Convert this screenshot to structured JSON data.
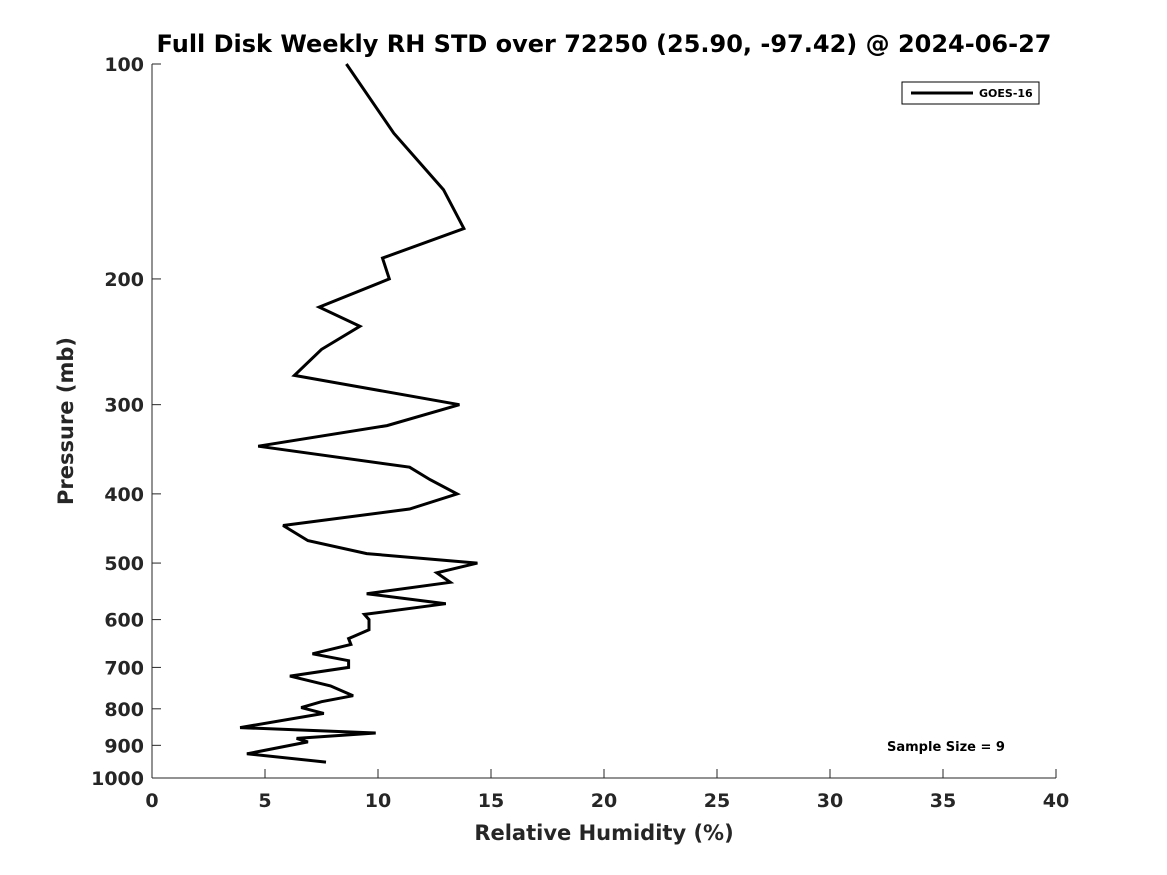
{
  "chart_data": {
    "type": "line",
    "title": "Full Disk Weekly RH STD over 72250 (25.90, -97.42) @ 2024-06-27",
    "xlabel": "Relative Humidity (%)",
    "ylabel": "Pressure (mb)",
    "xlim": [
      0,
      40
    ],
    "ylim": [
      100,
      1000
    ],
    "y_scale": "log",
    "y_reversed": true,
    "x_ticks": [
      "0",
      "5",
      "10",
      "15",
      "20",
      "25",
      "30",
      "35",
      "40"
    ],
    "y_ticks": [
      "100",
      "200",
      "300",
      "400",
      "500",
      "600",
      "700",
      "800",
      "900",
      "1000"
    ],
    "grid": false,
    "legend_position": "top-right",
    "annotation": "Sample Size = 9",
    "series": [
      {
        "name": "GOES-16",
        "color": "#000000",
        "points": [
          [
            8.6,
            100
          ],
          [
            10.7,
            125
          ],
          [
            12.9,
            150
          ],
          [
            13.8,
            170
          ],
          [
            10.2,
            187
          ],
          [
            10.5,
            200
          ],
          [
            7.4,
            219
          ],
          [
            9.2,
            233
          ],
          [
            7.5,
            251
          ],
          [
            6.3,
            273
          ],
          [
            13.6,
            300
          ],
          [
            10.4,
            321
          ],
          [
            4.7,
            343
          ],
          [
            11.4,
            367
          ],
          [
            12.3,
            382
          ],
          [
            13.5,
            400
          ],
          [
            11.4,
            420
          ],
          [
            5.8,
            443
          ],
          [
            6.9,
            465
          ],
          [
            9.5,
            485
          ],
          [
            14.4,
            500
          ],
          [
            12.6,
            516
          ],
          [
            13.2,
            532
          ],
          [
            9.5,
            552
          ],
          [
            13.0,
            570
          ],
          [
            9.4,
            590
          ],
          [
            9.6,
            600
          ],
          [
            9.6,
            620
          ],
          [
            8.7,
            638
          ],
          [
            8.8,
            650
          ],
          [
            7.1,
            670
          ],
          [
            8.7,
            685
          ],
          [
            8.7,
            700
          ],
          [
            6.1,
            720
          ],
          [
            7.9,
            743
          ],
          [
            8.9,
            767
          ],
          [
            7.5,
            782
          ],
          [
            6.6,
            797
          ],
          [
            7.6,
            812
          ],
          [
            3.9,
            850
          ],
          [
            9.9,
            865
          ],
          [
            6.4,
            880
          ],
          [
            6.9,
            890
          ],
          [
            4.2,
            925
          ],
          [
            7.7,
            950
          ]
        ]
      }
    ]
  }
}
